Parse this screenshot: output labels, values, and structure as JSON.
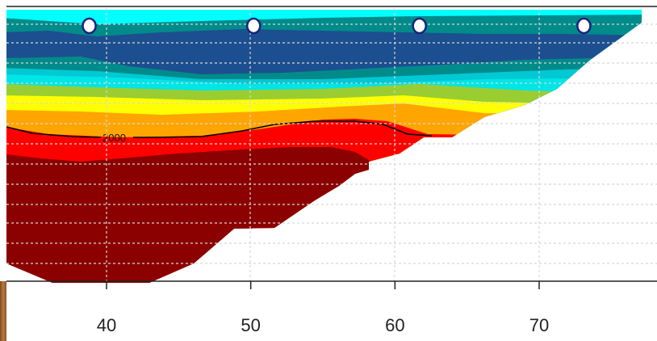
{
  "chart_data": {
    "type": "heatmap",
    "title": "",
    "xlabel": "",
    "ylabel": "",
    "xlim": [
      33,
      80
    ],
    "x_ticks": [
      40,
      50,
      60,
      70
    ],
    "x_tick_labels": [
      "40",
      "50",
      "60",
      "70"
    ],
    "grid": true,
    "grid_style": "dotted",
    "color_bands": [
      "#00ffff",
      "#008b8b",
      "#1c4f8f",
      "#00c8d4",
      "#00e5e5",
      "#9acd32",
      "#ffff00",
      "#ffa500",
      "#ff0000",
      "#8b0000"
    ],
    "contours": [
      {
        "level": "2000",
        "color": "#000000"
      }
    ],
    "markers": {
      "x": [
        38.8,
        50.2,
        61.7,
        73.1
      ],
      "style": "open-circle"
    },
    "colors": {
      "frame": "#222222",
      "grid": "#d0d0d0",
      "marker_edge": "#1a237e"
    }
  }
}
